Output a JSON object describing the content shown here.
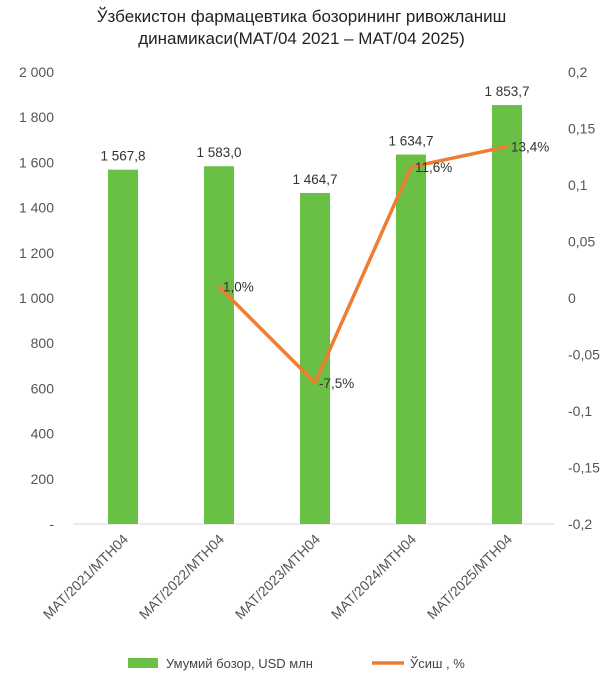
{
  "chart_data": {
    "type": "bar",
    "title_line1": "Ўзбекистон фармацевтика бозорининг ривожланиш",
    "title_line2": "динамикаси(MAT/04 2021 – MAT/04 2025)",
    "categories": [
      "MAT/2021/MTH04",
      "MAT/2022/MTH04",
      "MAT/2023/MTH04",
      "MAT/2024/MTH04",
      "MAT/2025/MTH04"
    ],
    "series": [
      {
        "name": "Умумий бозор, USD млн",
        "kind": "bar",
        "axis": "left",
        "color": "#6abf45",
        "values": [
          1567.8,
          1583.0,
          1464.7,
          1634.7,
          1853.7
        ],
        "labels": [
          "1 567,8",
          "1 583,0",
          "1 464,7",
          "1 634,7",
          "1 853,7"
        ]
      },
      {
        "name": "Ўсиш , %",
        "kind": "line",
        "axis": "right",
        "color": "#ed7d31",
        "values": [
          null,
          0.01,
          -0.075,
          0.116,
          0.134
        ],
        "labels": [
          "",
          "1,0%",
          "-7,5%",
          "11,6%",
          "13,4%"
        ]
      }
    ],
    "y_left": {
      "range": [
        0,
        2000
      ],
      "ticks": [
        0,
        200,
        400,
        600,
        800,
        1000,
        1200,
        1400,
        1600,
        1800,
        2000
      ],
      "tick_labels": [
        "-",
        "200",
        "400",
        "600",
        "800",
        "1 000",
        "1 200",
        "1 400",
        "1 600",
        "1 800",
        "2 000"
      ]
    },
    "y_right": {
      "range": [
        -0.2,
        0.2
      ],
      "ticks": [
        -0.2,
        -0.15,
        -0.1,
        -0.05,
        0,
        0.05,
        0.1,
        0.15,
        0.2
      ],
      "tick_labels": [
        "-0,2",
        "-0,15",
        "-0,1",
        "-0,05",
        "0",
        "0,05",
        "0,1",
        "0,15",
        "0,2"
      ]
    },
    "grid": false,
    "legend_position": "bottom"
  }
}
